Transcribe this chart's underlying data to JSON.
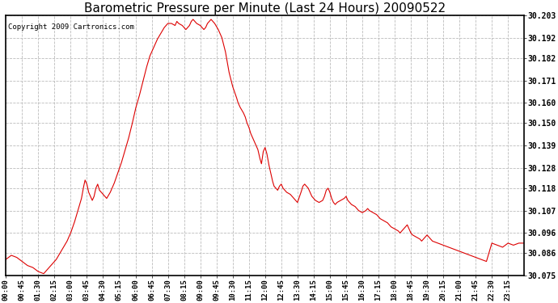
{
  "title": "Barometric Pressure per Minute (Last 24 Hours) 20090522",
  "copyright_text": "Copyright 2009 Cartronics.com",
  "line_color": "#dd0000",
  "background_color": "#ffffff",
  "plot_bg_color": "#ffffff",
  "grid_color": "#bbbbbb",
  "title_fontsize": 11,
  "copyright_fontsize": 6.5,
  "ylabel_fontsize": 7,
  "xlabel_fontsize": 6.5,
  "ytick_labels": [
    "30.075",
    "30.086",
    "30.096",
    "30.107",
    "30.118",
    "30.128",
    "30.139",
    "30.150",
    "30.160",
    "30.171",
    "30.182",
    "30.192",
    "30.203"
  ],
  "ytick_values": [
    30.075,
    30.086,
    30.096,
    30.107,
    30.118,
    30.128,
    30.139,
    30.15,
    30.16,
    30.171,
    30.182,
    30.192,
    30.203
  ],
  "xtick_labels": [
    "00:00",
    "00:45",
    "01:30",
    "02:15",
    "03:00",
    "03:45",
    "04:30",
    "05:15",
    "06:00",
    "06:45",
    "07:30",
    "08:15",
    "09:00",
    "09:45",
    "10:30",
    "11:15",
    "12:00",
    "12:45",
    "13:30",
    "14:15",
    "15:00",
    "15:45",
    "16:30",
    "17:15",
    "18:00",
    "18:45",
    "19:30",
    "20:15",
    "21:00",
    "21:45",
    "22:30",
    "23:15"
  ],
  "ylim": [
    30.075,
    30.203
  ],
  "xlim": [
    0,
    1439
  ],
  "pressure_data": [
    [
      0,
      30.083
    ],
    [
      15,
      30.085
    ],
    [
      30,
      30.084
    ],
    [
      45,
      30.082
    ],
    [
      60,
      30.08
    ],
    [
      75,
      30.079
    ],
    [
      90,
      30.077
    ],
    [
      105,
      30.076
    ],
    [
      115,
      30.078
    ],
    [
      120,
      30.079
    ],
    [
      130,
      30.081
    ],
    [
      140,
      30.083
    ],
    [
      150,
      30.086
    ],
    [
      160,
      30.089
    ],
    [
      170,
      30.092
    ],
    [
      180,
      30.096
    ],
    [
      190,
      30.101
    ],
    [
      200,
      30.107
    ],
    [
      210,
      30.113
    ],
    [
      215,
      30.118
    ],
    [
      220,
      30.122
    ],
    [
      225,
      30.12
    ],
    [
      230,
      30.116
    ],
    [
      240,
      30.112
    ],
    [
      245,
      30.114
    ],
    [
      250,
      30.118
    ],
    [
      255,
      30.12
    ],
    [
      260,
      30.117
    ],
    [
      270,
      30.115
    ],
    [
      280,
      30.113
    ],
    [
      290,
      30.116
    ],
    [
      300,
      30.12
    ],
    [
      310,
      30.125
    ],
    [
      320,
      30.13
    ],
    [
      330,
      30.136
    ],
    [
      340,
      30.142
    ],
    [
      350,
      30.149
    ],
    [
      360,
      30.157
    ],
    [
      370,
      30.163
    ],
    [
      380,
      30.17
    ],
    [
      390,
      30.177
    ],
    [
      400,
      30.183
    ],
    [
      410,
      30.187
    ],
    [
      420,
      30.191
    ],
    [
      430,
      30.194
    ],
    [
      440,
      30.197
    ],
    [
      450,
      30.199
    ],
    [
      460,
      30.199
    ],
    [
      470,
      30.198
    ],
    [
      475,
      30.2
    ],
    [
      480,
      30.199
    ],
    [
      490,
      30.198
    ],
    [
      495,
      30.197
    ],
    [
      500,
      30.196
    ],
    [
      510,
      30.198
    ],
    [
      515,
      30.2
    ],
    [
      520,
      30.201
    ],
    [
      525,
      30.2
    ],
    [
      530,
      30.199
    ],
    [
      540,
      30.198
    ],
    [
      545,
      30.197
    ],
    [
      550,
      30.196
    ],
    [
      555,
      30.197
    ],
    [
      560,
      30.199
    ],
    [
      565,
      30.2
    ],
    [
      570,
      30.201
    ],
    [
      575,
      30.2
    ],
    [
      580,
      30.199
    ],
    [
      590,
      30.196
    ],
    [
      600,
      30.192
    ],
    [
      610,
      30.185
    ],
    [
      615,
      30.18
    ],
    [
      620,
      30.175
    ],
    [
      630,
      30.168
    ],
    [
      640,
      30.163
    ],
    [
      645,
      30.16
    ],
    [
      650,
      30.158
    ],
    [
      660,
      30.155
    ],
    [
      665,
      30.153
    ],
    [
      670,
      30.15
    ],
    [
      675,
      30.148
    ],
    [
      680,
      30.145
    ],
    [
      690,
      30.141
    ],
    [
      700,
      30.137
    ],
    [
      705,
      30.133
    ],
    [
      710,
      30.13
    ],
    [
      715,
      30.136
    ],
    [
      720,
      30.138
    ],
    [
      725,
      30.135
    ],
    [
      730,
      30.13
    ],
    [
      735,
      30.126
    ],
    [
      740,
      30.122
    ],
    [
      745,
      30.119
    ],
    [
      750,
      30.118
    ],
    [
      755,
      30.117
    ],
    [
      760,
      30.119
    ],
    [
      765,
      30.12
    ],
    [
      770,
      30.118
    ],
    [
      780,
      30.116
    ],
    [
      790,
      30.115
    ],
    [
      800,
      30.113
    ],
    [
      810,
      30.111
    ],
    [
      820,
      30.116
    ],
    [
      825,
      30.119
    ],
    [
      830,
      30.12
    ],
    [
      840,
      30.118
    ],
    [
      845,
      30.116
    ],
    [
      850,
      30.114
    ],
    [
      855,
      30.113
    ],
    [
      860,
      30.112
    ],
    [
      870,
      30.111
    ],
    [
      880,
      30.112
    ],
    [
      885,
      30.114
    ],
    [
      890,
      30.117
    ],
    [
      895,
      30.118
    ],
    [
      900,
      30.116
    ],
    [
      905,
      30.113
    ],
    [
      910,
      30.111
    ],
    [
      915,
      30.11
    ],
    [
      920,
      30.111
    ],
    [
      930,
      30.112
    ],
    [
      940,
      30.113
    ],
    [
      945,
      30.114
    ],
    [
      950,
      30.112
    ],
    [
      960,
      30.11
    ],
    [
      970,
      30.109
    ],
    [
      975,
      30.108
    ],
    [
      980,
      30.107
    ],
    [
      990,
      30.106
    ],
    [
      1000,
      30.107
    ],
    [
      1005,
      30.108
    ],
    [
      1010,
      30.107
    ],
    [
      1020,
      30.106
    ],
    [
      1030,
      30.105
    ],
    [
      1035,
      30.104
    ],
    [
      1040,
      30.103
    ],
    [
      1050,
      30.102
    ],
    [
      1060,
      30.101
    ],
    [
      1065,
      30.1
    ],
    [
      1070,
      30.099
    ],
    [
      1080,
      30.098
    ],
    [
      1090,
      30.097
    ],
    [
      1095,
      30.096
    ],
    [
      1100,
      30.097
    ],
    [
      1105,
      30.098
    ],
    [
      1110,
      30.099
    ],
    [
      1115,
      30.1
    ],
    [
      1120,
      30.098
    ],
    [
      1125,
      30.096
    ],
    [
      1130,
      30.095
    ],
    [
      1140,
      30.094
    ],
    [
      1150,
      30.093
    ],
    [
      1155,
      30.092
    ],
    [
      1160,
      30.093
    ],
    [
      1165,
      30.094
    ],
    [
      1170,
      30.095
    ],
    [
      1175,
      30.094
    ],
    [
      1180,
      30.093
    ],
    [
      1185,
      30.092
    ],
    [
      1200,
      30.091
    ],
    [
      1215,
      30.09
    ],
    [
      1230,
      30.089
    ],
    [
      1245,
      30.088
    ],
    [
      1260,
      30.087
    ],
    [
      1275,
      30.086
    ],
    [
      1290,
      30.085
    ],
    [
      1305,
      30.084
    ],
    [
      1320,
      30.083
    ],
    [
      1335,
      30.082
    ],
    [
      1350,
      30.091
    ],
    [
      1365,
      30.09
    ],
    [
      1380,
      30.089
    ],
    [
      1395,
      30.091
    ],
    [
      1410,
      30.09
    ],
    [
      1425,
      30.091
    ],
    [
      1439,
      30.091
    ]
  ]
}
